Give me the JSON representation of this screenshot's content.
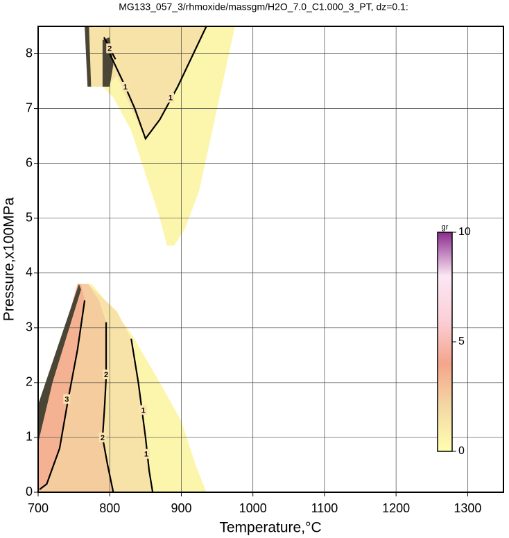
{
  "chart_data": {
    "type": "contour",
    "title": "MG133_057_3/rhmoxide/massgm/H2O_7.0_C1.000_3_PT, dz=0.1:",
    "x_label": "Temperature,°C",
    "y_label": "Pressure,x100MPa",
    "xlim": [
      700,
      1350
    ],
    "ylim": [
      0,
      8.5
    ],
    "xticks": [
      700,
      800,
      900,
      1000,
      1100,
      1200,
      1300
    ],
    "yticks": [
      0,
      1,
      2,
      3,
      4,
      5,
      6,
      7,
      8
    ],
    "grid": true,
    "colorbar": {
      "label": "gr",
      "lim": [
        0,
        10
      ],
      "ticks": [
        0,
        5,
        10
      ],
      "colors": [
        "#ffffb0",
        "#f4d9a4",
        "#f4a58c",
        "#fbd0d8",
        "#fbe7f4",
        "#8b2c8e"
      ]
    },
    "regions": [
      {
        "level": 0.5,
        "points": [
          [
            700,
            0
          ],
          [
            935,
            0
          ],
          [
            920,
            0.5
          ],
          [
            900,
            1.3
          ],
          [
            870,
            2.0
          ],
          [
            830,
            2.9
          ],
          [
            800,
            3.4
          ],
          [
            775,
            3.8
          ],
          [
            755,
            3.8
          ],
          [
            700,
            1.2
          ]
        ]
      },
      {
        "level": 1.5,
        "points": [
          [
            700,
            0
          ],
          [
            860,
            0
          ],
          [
            850,
            1.0
          ],
          [
            840,
            2.0
          ],
          [
            830,
            2.8
          ],
          [
            810,
            3.3
          ],
          [
            770,
            3.8
          ],
          [
            755,
            3.8
          ],
          [
            700,
            1.2
          ]
        ]
      },
      {
        "level": 2.5,
        "points": [
          [
            700,
            0
          ],
          [
            805,
            0
          ],
          [
            797,
            0.5
          ],
          [
            790,
            1.0
          ],
          [
            795,
            2.1
          ],
          [
            795,
            3.1
          ],
          [
            785,
            3.5
          ],
          [
            770,
            3.8
          ],
          [
            755,
            3.8
          ],
          [
            700,
            1.2
          ]
        ]
      },
      {
        "level": 3.5,
        "points": [
          [
            700,
            0
          ],
          [
            712,
            0.15
          ],
          [
            730,
            0.8
          ],
          [
            742,
            1.7
          ],
          [
            755,
            2.6
          ],
          [
            765,
            3.5
          ],
          [
            760,
            3.8
          ],
          [
            755,
            3.8
          ],
          [
            700,
            1.2
          ]
        ]
      },
      {
        "level": 0.5,
        "points": [
          [
            765,
            8.5
          ],
          [
            975,
            8.5
          ],
          [
            950,
            7.0
          ],
          [
            925,
            5.5
          ],
          [
            905,
            4.8
          ],
          [
            890,
            4.5
          ],
          [
            880,
            4.5
          ],
          [
            870,
            5.0
          ],
          [
            850,
            5.8
          ],
          [
            830,
            6.6
          ],
          [
            805,
            7.2
          ],
          [
            790,
            7.4
          ],
          [
            770,
            7.4
          ]
        ]
      },
      {
        "level": 1.5,
        "points": [
          [
            770,
            8.5
          ],
          [
            935,
            8.5
          ],
          [
            900,
            7.5
          ],
          [
            870,
            6.8
          ],
          [
            850,
            6.45
          ],
          [
            830,
            7.0
          ],
          [
            810,
            7.6
          ],
          [
            795,
            7.4
          ],
          [
            770,
            7.4
          ]
        ]
      },
      {
        "level": 2.5,
        "color": "#4b4536",
        "points": [
          [
            700,
            0.9
          ],
          [
            700,
            1.6
          ],
          [
            757,
            3.8
          ],
          [
            760,
            3.7
          ],
          [
            720,
            2.0
          ]
        ]
      },
      {
        "level": 2.5,
        "color": "#4b4536",
        "points": [
          [
            765,
            8.5
          ],
          [
            771,
            8.5
          ],
          [
            774,
            7.4
          ],
          [
            769,
            7.4
          ]
        ]
      },
      {
        "level": 2.5,
        "color": "#4b4536",
        "points": [
          [
            790,
            7.4
          ],
          [
            790,
            8.25
          ],
          [
            800,
            8.3
          ],
          [
            805,
            7.8
          ],
          [
            800,
            7.4
          ]
        ]
      }
    ],
    "contours": [
      {
        "value": 1,
        "points": [
          [
            860,
            0
          ],
          [
            855,
            0.4
          ],
          [
            850,
            1.0
          ],
          [
            845,
            1.5
          ],
          [
            840,
            2.0
          ],
          [
            830,
            2.8
          ]
        ],
        "label_positions": [
          [
            851,
            0.7
          ],
          [
            847,
            1.5
          ]
        ]
      },
      {
        "value": 2,
        "points": [
          [
            805,
            0
          ],
          [
            797,
            0.5
          ],
          [
            790,
            1.0
          ],
          [
            793,
            1.6
          ],
          [
            795,
            2.1
          ],
          [
            795,
            3.1
          ]
        ],
        "label_positions": [
          [
            790,
            1.0
          ],
          [
            795,
            2.15
          ]
        ]
      },
      {
        "value": 3,
        "points": [
          [
            702,
            0.05
          ],
          [
            712,
            0.15
          ],
          [
            730,
            0.8
          ],
          [
            742,
            1.7
          ],
          [
            755,
            2.6
          ],
          [
            765,
            3.5
          ]
        ],
        "label_positions": [
          [
            740,
            1.7
          ]
        ]
      },
      {
        "value": 1,
        "points": [
          [
            800,
            8.0
          ],
          [
            820,
            7.45
          ],
          [
            835,
            7.0
          ],
          [
            850,
            6.45
          ],
          [
            870,
            6.8
          ],
          [
            895,
            7.4
          ],
          [
            935,
            8.5
          ]
        ],
        "label_positions": [
          [
            822,
            7.4
          ],
          [
            885,
            7.2
          ]
        ]
      },
      {
        "value": 2,
        "points": [
          [
            792,
            8.3
          ],
          [
            800,
            8.1
          ],
          [
            808,
            7.9
          ]
        ],
        "label_positions": [
          [
            800,
            8.1
          ]
        ]
      }
    ]
  }
}
